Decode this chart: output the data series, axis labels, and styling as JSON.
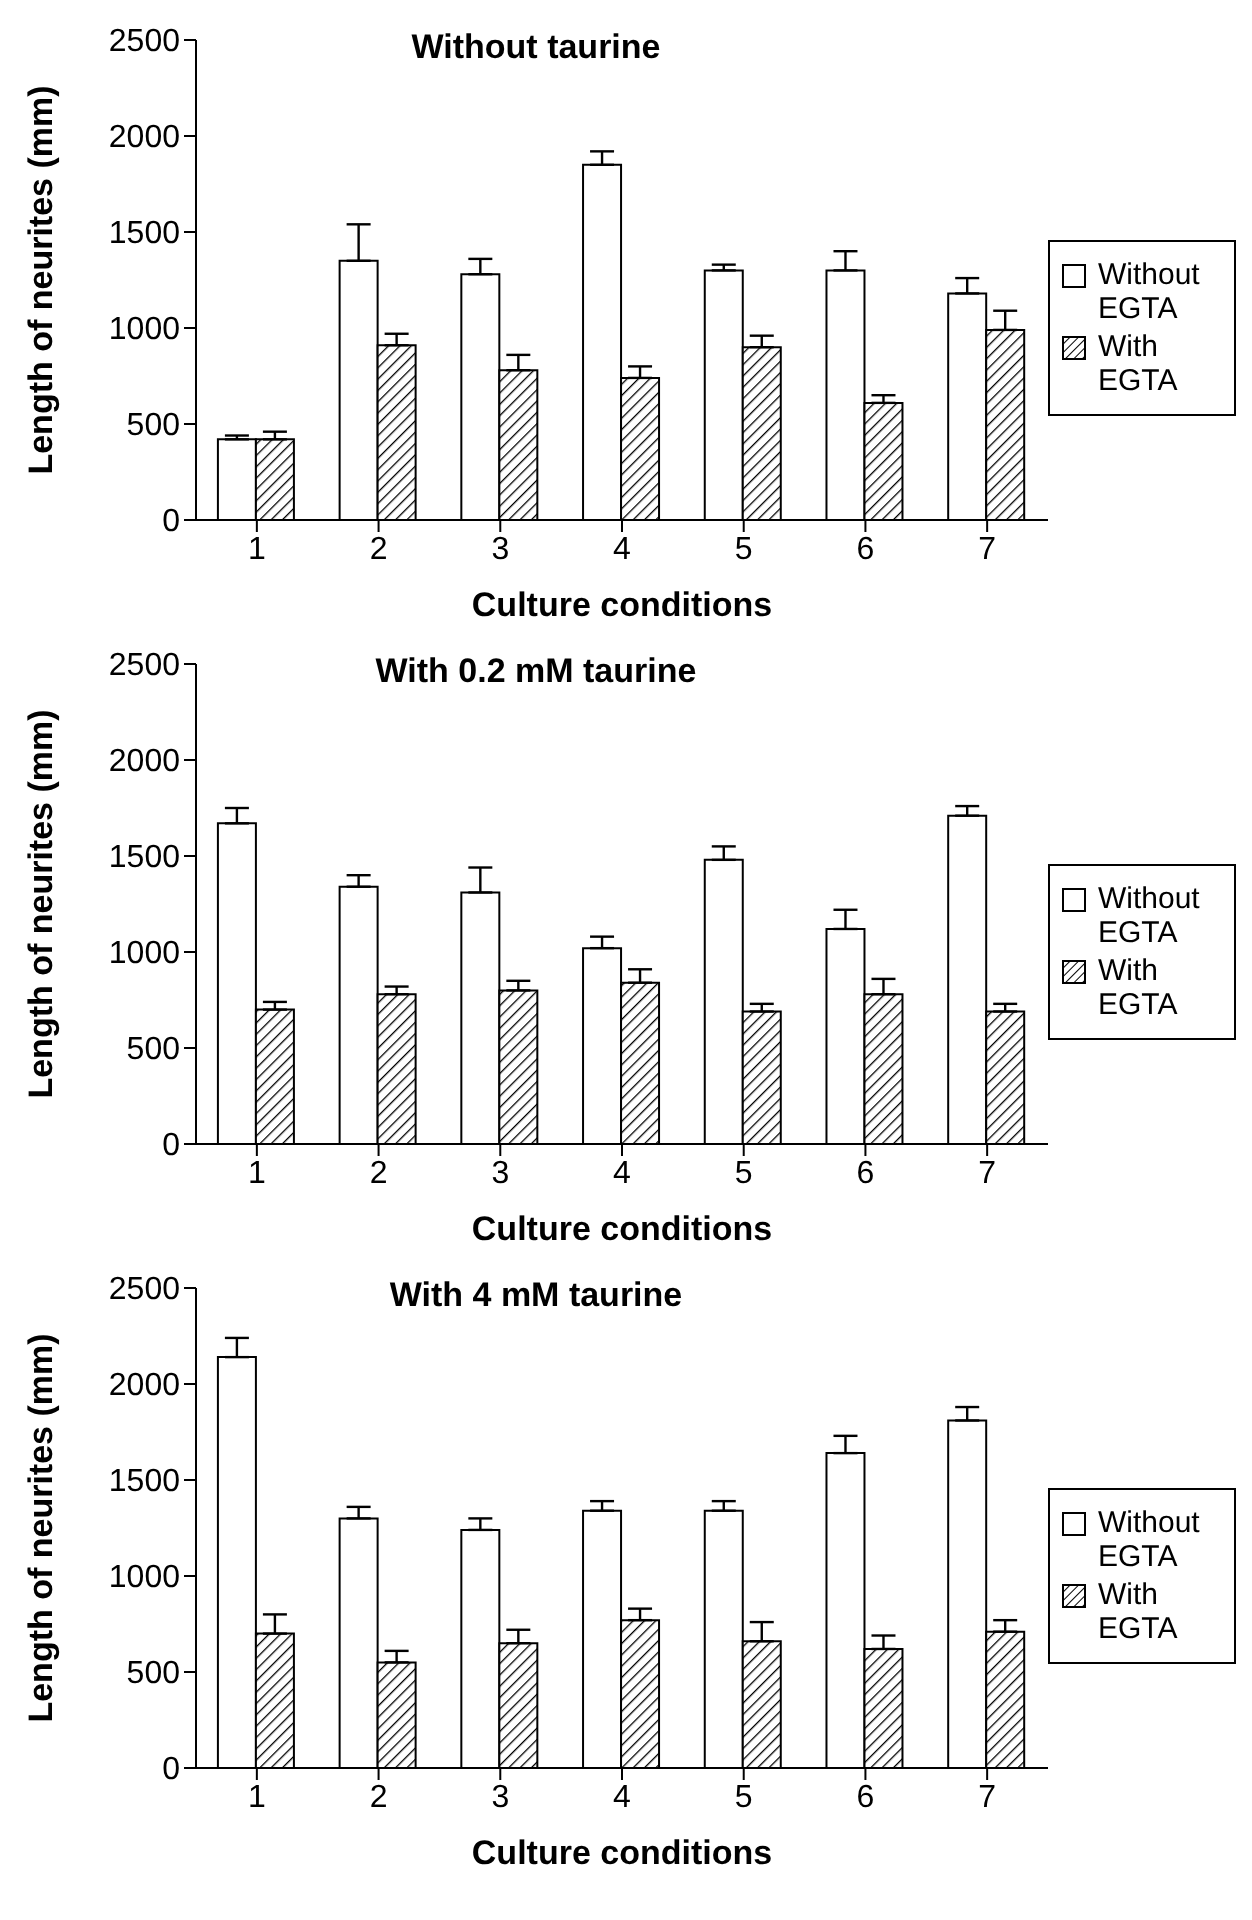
{
  "chart_data": [
    {
      "type": "bar",
      "title": "Without taurine",
      "xlabel": "Culture conditions",
      "ylabel": "Length of neurites (mm)",
      "categories": [
        "1",
        "2",
        "3",
        "4",
        "5",
        "6",
        "7"
      ],
      "ylim": [
        0,
        2500
      ],
      "yticks": [
        0,
        500,
        1000,
        1500,
        2000,
        2500
      ],
      "grid": false,
      "legend": "right",
      "series": [
        {
          "name": "Without EGTA",
          "color": "#ffffff",
          "values": [
            420,
            1350,
            1280,
            1850,
            1300,
            1300,
            1180
          ],
          "errors": [
            [
              420,
              440
            ],
            [
              1350,
              1540
            ],
            [
              1280,
              1360
            ],
            [
              1850,
              1920
            ],
            [
              1300,
              1330
            ],
            [
              1300,
              1400
            ],
            [
              1180,
              1260
            ]
          ]
        },
        {
          "name": "With EGTA",
          "color": "#000000",
          "values": [
            420,
            910,
            780,
            740,
            900,
            610,
            990
          ],
          "errors": [
            [
              420,
              460
            ],
            [
              910,
              970
            ],
            [
              780,
              860
            ],
            [
              740,
              800
            ],
            [
              900,
              960
            ],
            [
              610,
              650
            ],
            [
              990,
              1090
            ]
          ]
        }
      ]
    },
    {
      "type": "bar",
      "title": "With 0.2 mM taurine",
      "xlabel": "Culture conditions",
      "ylabel": "Length of neurites (mm)",
      "categories": [
        "1",
        "2",
        "3",
        "4",
        "5",
        "6",
        "7"
      ],
      "ylim": [
        0,
        2500
      ],
      "yticks": [
        0,
        500,
        1000,
        1500,
        2000,
        2500
      ],
      "grid": false,
      "legend": "right",
      "series": [
        {
          "name": "Without EGTA",
          "color": "#ffffff",
          "values": [
            1670,
            1340,
            1310,
            1020,
            1480,
            1120,
            1710
          ],
          "errors": [
            [
              1670,
              1750
            ],
            [
              1340,
              1400
            ],
            [
              1310,
              1440
            ],
            [
              1020,
              1080
            ],
            [
              1480,
              1550
            ],
            [
              1120,
              1220
            ],
            [
              1710,
              1760
            ]
          ]
        },
        {
          "name": "With EGTA",
          "color": "#000000",
          "values": [
            700,
            780,
            800,
            840,
            690,
            780,
            690
          ],
          "errors": [
            [
              700,
              740
            ],
            [
              780,
              820
            ],
            [
              800,
              850
            ],
            [
              840,
              910
            ],
            [
              690,
              730
            ],
            [
              780,
              860
            ],
            [
              690,
              730
            ]
          ]
        }
      ]
    },
    {
      "type": "bar",
      "title": "With 4 mM taurine",
      "xlabel": "Culture conditions",
      "ylabel": "Length of neurites (mm)",
      "categories": [
        "1",
        "2",
        "3",
        "4",
        "5",
        "6",
        "7"
      ],
      "ylim": [
        0,
        2500
      ],
      "yticks": [
        0,
        500,
        1000,
        1500,
        2000,
        2500
      ],
      "grid": false,
      "legend": "right",
      "series": [
        {
          "name": "Without EGTA",
          "color": "#ffffff",
          "values": [
            2140,
            1300,
            1240,
            1340,
            1340,
            1640,
            1810
          ],
          "errors": [
            [
              2140,
              2240
            ],
            [
              1300,
              1360
            ],
            [
              1240,
              1300
            ],
            [
              1340,
              1390
            ],
            [
              1340,
              1390
            ],
            [
              1640,
              1730
            ],
            [
              1810,
              1880
            ]
          ]
        },
        {
          "name": "With EGTA",
          "color": "#000000",
          "values": [
            700,
            550,
            650,
            770,
            660,
            620,
            710
          ],
          "errors": [
            [
              700,
              800
            ],
            [
              550,
              610
            ],
            [
              650,
              720
            ],
            [
              770,
              830
            ],
            [
              660,
              760
            ],
            [
              620,
              690
            ],
            [
              710,
              770
            ]
          ]
        }
      ]
    }
  ]
}
